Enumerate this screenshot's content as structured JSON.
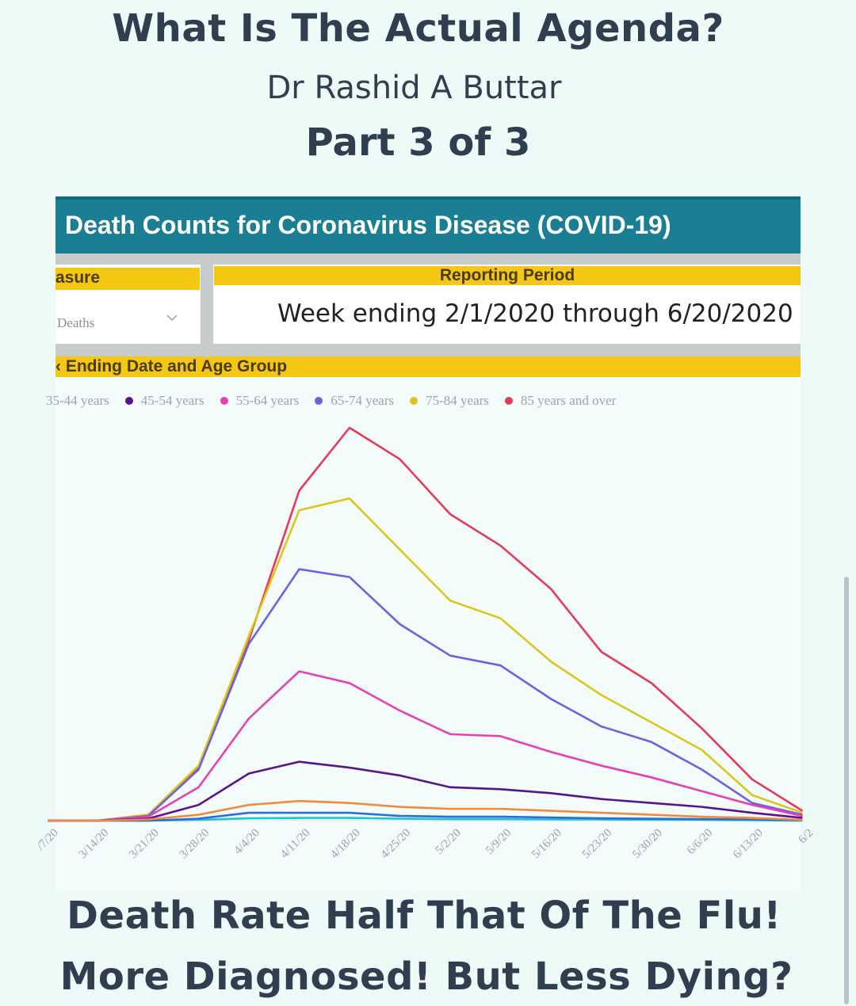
{
  "post": {
    "title": "What Is The Actual Agenda?",
    "author": "Dr Rashid A Buttar",
    "part": "Part 3 of 3",
    "caption_line1": "Death Rate Half That Of The Flu!",
    "caption_line2": "More Diagnosed! But Less Dying?"
  },
  "dashboard": {
    "title": "Death Counts for Coronavirus Disease (COVID-19)",
    "measure_label": "asure",
    "measure_value": "Deaths",
    "period_label": "Reporting Period",
    "period_value": "Week ending 2/1/2020 through 6/20/2020",
    "chart_header": "‹ Ending Date and Age Group",
    "colors": {
      "header": "#1b7f93",
      "yellow": "#f3c712",
      "gray": "#c8cbcb"
    }
  },
  "chart_data": {
    "type": "line",
    "x": [
      "/7/20",
      "3/14/20",
      "3/21/20",
      "3/28/20",
      "4/4/20",
      "4/11/20",
      "4/18/20",
      "4/25/20",
      "5/2/20",
      "5/9/20",
      "5/16/20",
      "5/23/20",
      "5/30/20",
      "6/6/20",
      "6/13/20",
      "6/2"
    ],
    "ylim": [
      0,
      100
    ],
    "grid": false,
    "legend_position": "top",
    "series": [
      {
        "name": "35-44 years",
        "color": "#f08a3c",
        "values": [
          0,
          0,
          0.3,
          1.5,
          4,
          5,
          4.5,
          3.5,
          3,
          3,
          2.5,
          2,
          1.5,
          1,
          0.7,
          0.2
        ]
      },
      {
        "name": "45-54 years",
        "color": "#5a1390",
        "values": [
          0,
          0,
          0.5,
          4,
          12,
          15,
          13.5,
          11.5,
          8.5,
          8,
          7,
          5.5,
          4.5,
          3.5,
          2,
          0.7
        ]
      },
      {
        "name": "55-64 years",
        "color": "#e640b4",
        "values": [
          0,
          0,
          1,
          8.5,
          26,
          38,
          35,
          28,
          22,
          21.5,
          17.5,
          14,
          11,
          7.5,
          4,
          1.2
        ]
      },
      {
        "name": "65-74 years",
        "color": "#6b63dc",
        "values": [
          0,
          0,
          1.2,
          13,
          45,
          64,
          62,
          50,
          42,
          39.5,
          31,
          24,
          20,
          13,
          4.5,
          1.5
        ]
      },
      {
        "name": "75-84 years",
        "color": "#d8c81a",
        "values": [
          0,
          0,
          1.5,
          14,
          47,
          79,
          82,
          69,
          56,
          51.5,
          40.5,
          32,
          25,
          18,
          6.5,
          2
        ]
      },
      {
        "name": "85 years and over",
        "color": "#e63a5a",
        "values": [
          0,
          0,
          1.5,
          13.5,
          46,
          84,
          100,
          92,
          78,
          70,
          59,
          43,
          35,
          23.5,
          10.5,
          2.5
        ]
      },
      {
        "name": "",
        "color": "#2a6fd8",
        "values": [
          0,
          0,
          0,
          0.5,
          2,
          2,
          2,
          1.2,
          1,
          1,
          0.8,
          0.6,
          0.5,
          0.4,
          0.3,
          0.1
        ]
      },
      {
        "name": "",
        "color": "#21c3d6",
        "values": [
          0,
          0,
          0,
          0.2,
          0.6,
          0.7,
          0.7,
          0.5,
          0.4,
          0.4,
          0.3,
          0.3,
          0.2,
          0.2,
          0.1,
          0
        ]
      }
    ]
  }
}
